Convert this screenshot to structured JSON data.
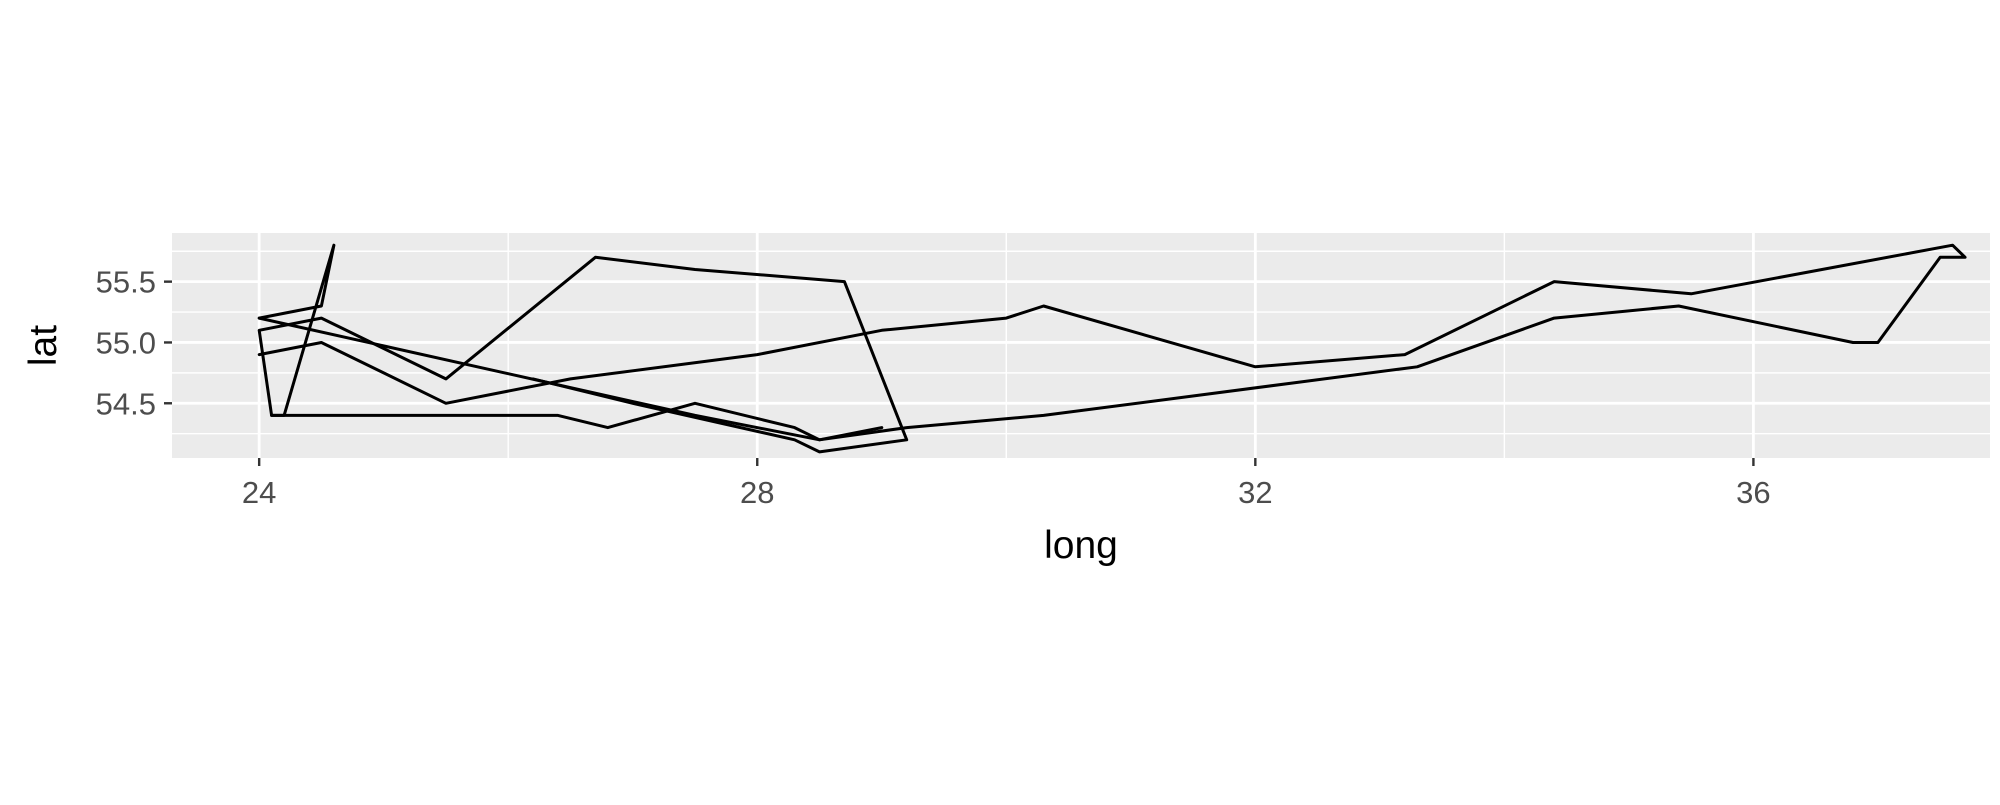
{
  "chart_data": {
    "type": "line",
    "title": "",
    "xlabel": "long",
    "ylabel": "lat",
    "xlim": [
      23.3,
      37.9
    ],
    "ylim": [
      54.05,
      55.9
    ],
    "x_ticks": [
      24,
      28,
      32,
      36
    ],
    "x_tick_labels": [
      "24",
      "28",
      "32",
      "36"
    ],
    "y_ticks": [
      54.5,
      55.0,
      55.5
    ],
    "y_tick_labels": [
      "54.5",
      "55.0",
      "55.5"
    ],
    "grid": true,
    "legend": "none",
    "line_color": "#000000",
    "panel_background": "#EBEBEB",
    "gridline_color": "#FFFFFF",
    "paths": [
      {
        "points": [
          [
            24.0,
            55.2
          ],
          [
            24.5,
            55.3
          ],
          [
            24.6,
            55.8
          ],
          [
            24.2,
            54.4
          ],
          [
            24.1,
            54.4
          ],
          [
            24.0,
            55.1
          ],
          [
            24.5,
            55.2
          ],
          [
            25.5,
            54.7
          ],
          [
            26.7,
            55.7
          ],
          [
            27.5,
            55.6
          ],
          [
            28.7,
            55.5
          ],
          [
            29.2,
            54.2
          ],
          [
            28.5,
            54.1
          ],
          [
            28.3,
            54.2
          ],
          [
            27.0,
            54.5
          ],
          [
            26.2,
            54.7
          ]
        ]
      },
      {
        "points": [
          [
            24.0,
            55.2
          ],
          [
            27.5,
            54.4
          ],
          [
            28.5,
            54.2
          ],
          [
            29.2,
            54.3
          ],
          [
            30.3,
            54.4
          ],
          [
            33.3,
            54.8
          ],
          [
            34.4,
            55.2
          ],
          [
            35.4,
            55.3
          ],
          [
            36.8,
            55.0
          ],
          [
            37.0,
            55.0
          ],
          [
            37.5,
            55.7
          ],
          [
            37.7,
            55.7
          ],
          [
            37.6,
            55.8
          ],
          [
            35.5,
            55.4
          ],
          [
            34.4,
            55.5
          ],
          [
            33.2,
            54.9
          ],
          [
            32.0,
            54.8
          ],
          [
            30.3,
            55.3
          ],
          [
            30.0,
            55.2
          ],
          [
            29.0,
            55.1
          ],
          [
            28.0,
            54.9
          ],
          [
            26.5,
            54.7
          ],
          [
            25.5,
            54.5
          ],
          [
            24.5,
            55.0
          ],
          [
            24.0,
            54.9
          ]
        ]
      },
      {
        "points": [
          [
            24.1,
            54.4
          ],
          [
            26.4,
            54.4
          ],
          [
            26.8,
            54.3
          ],
          [
            27.5,
            54.5
          ],
          [
            28.3,
            54.3
          ],
          [
            28.5,
            54.2
          ],
          [
            29.0,
            54.3
          ]
        ]
      }
    ]
  }
}
